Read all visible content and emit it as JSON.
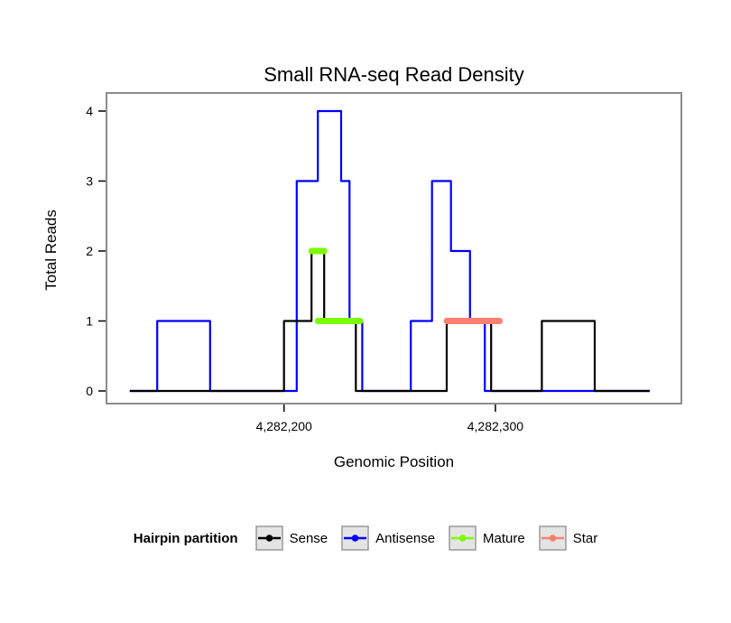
{
  "chart_data": {
    "type": "line",
    "style": "step-density",
    "title": "Small RNA-seq Read Density",
    "xlabel": "Genomic Position",
    "ylabel": "Total Reads",
    "xlim": [
      4282116,
      4282388
    ],
    "ylim": [
      0,
      4
    ],
    "grid": false,
    "legend_position": "bottom",
    "panel_border_color": "#8c8c8c",
    "xticks": [
      {
        "value": 4282200,
        "label": "4,282,200"
      },
      {
        "value": 4282300,
        "label": "4,282,300"
      }
    ],
    "yticks": [
      {
        "value": 0,
        "label": "0"
      },
      {
        "value": 1,
        "label": "1"
      },
      {
        "value": 2,
        "label": "2"
      },
      {
        "value": 3,
        "label": "3"
      },
      {
        "value": 4,
        "label": "4"
      }
    ],
    "draw_order": [
      "Antisense",
      "Sense",
      "Mature",
      "Star"
    ],
    "series": [
      {
        "name": "Sense",
        "color": "#000000",
        "geom": "step",
        "points": [
          [
            4282127,
            0
          ],
          [
            4282200,
            0
          ],
          [
            4282200,
            1
          ],
          [
            4282213,
            1
          ],
          [
            4282213,
            2
          ],
          [
            4282219,
            2
          ],
          [
            4282219,
            1
          ],
          [
            4282234,
            1
          ],
          [
            4282234,
            0
          ],
          [
            4282277,
            0
          ],
          [
            4282277,
            1
          ],
          [
            4282298,
            1
          ],
          [
            4282298,
            0
          ],
          [
            4282322,
            0
          ],
          [
            4282322,
            1
          ],
          [
            4282347,
            1
          ],
          [
            4282347,
            0
          ],
          [
            4282373,
            0
          ]
        ]
      },
      {
        "name": "Antisense",
        "color": "#0000FF",
        "geom": "step",
        "points": [
          [
            4282127,
            0
          ],
          [
            4282140,
            0
          ],
          [
            4282140,
            1
          ],
          [
            4282165,
            1
          ],
          [
            4282165,
            0
          ],
          [
            4282206,
            0
          ],
          [
            4282206,
            3
          ],
          [
            4282216,
            3
          ],
          [
            4282216,
            4
          ],
          [
            4282227,
            4
          ],
          [
            4282227,
            3
          ],
          [
            4282231,
            3
          ],
          [
            4282231,
            1
          ],
          [
            4282237,
            1
          ],
          [
            4282237,
            0
          ],
          [
            4282260,
            0
          ],
          [
            4282260,
            1
          ],
          [
            4282270,
            1
          ],
          [
            4282270,
            3
          ],
          [
            4282279,
            3
          ],
          [
            4282279,
            2
          ],
          [
            4282288,
            2
          ],
          [
            4282288,
            1
          ],
          [
            4282295,
            1
          ],
          [
            4282295,
            0
          ],
          [
            4282373,
            0
          ]
        ]
      },
      {
        "name": "Mature",
        "color": "#7CFC00",
        "geom": "segment",
        "linewidth": 7,
        "segments": [
          [
            4282213,
            2,
            4282219,
            2
          ],
          [
            4282216,
            1,
            4282236,
            1
          ]
        ]
      },
      {
        "name": "Star",
        "color": "#FA8072",
        "geom": "segment",
        "linewidth": 7,
        "segments": [
          [
            4282277,
            1,
            4282302,
            1
          ]
        ]
      }
    ],
    "legend": {
      "title": "Hairpin partition",
      "items": [
        {
          "label": "Sense",
          "color": "#000000"
        },
        {
          "label": "Antisense",
          "color": "#0000FF"
        },
        {
          "label": "Mature",
          "color": "#7CFC00"
        },
        {
          "label": "Star",
          "color": "#FA8072"
        }
      ]
    }
  }
}
